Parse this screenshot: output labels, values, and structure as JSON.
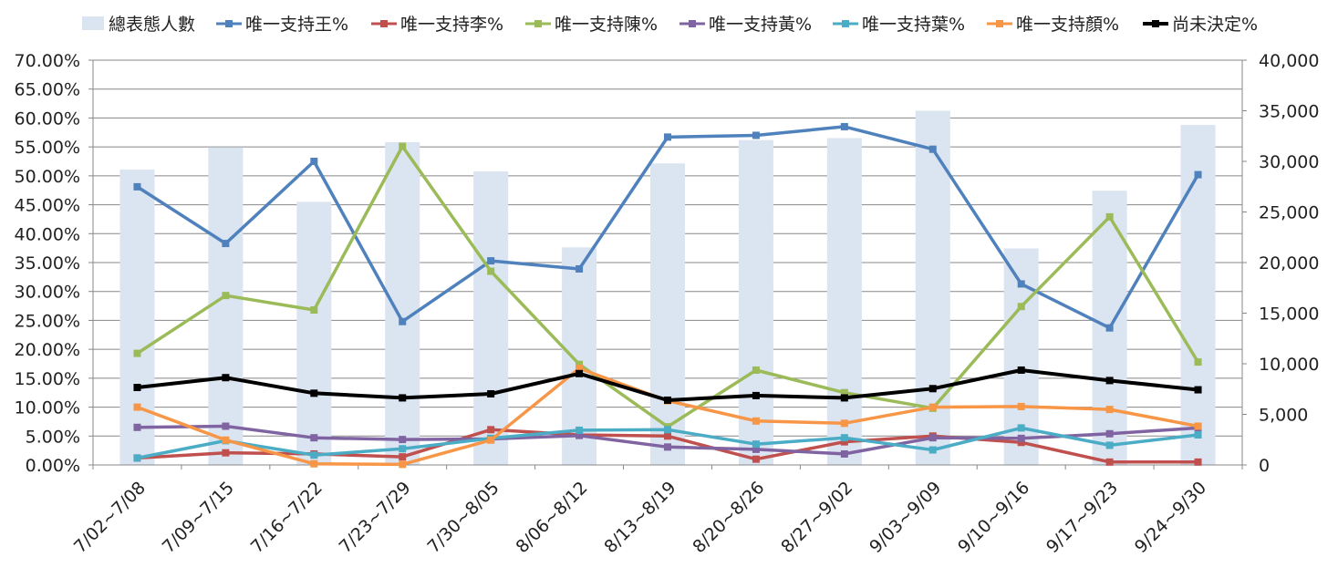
{
  "chart_data": {
    "type": "bar+line",
    "categories": [
      "7/02~7/08",
      "7/09~7/15",
      "7/16~7/22",
      "7/23~7/29",
      "7/30~8/05",
      "8/06~8/12",
      "8/13~8/19",
      "8/20~8/26",
      "8/27~9/02",
      "9/03~9/09",
      "9/10~9/16",
      "9/17~9/23",
      "9/24~9/30"
    ],
    "y_left": {
      "min": 0,
      "max": 0.7,
      "step": 0.05,
      "ticks": [
        "0.00%",
        "5.00%",
        "10.00%",
        "15.00%",
        "20.00%",
        "25.00%",
        "30.00%",
        "35.00%",
        "40.00%",
        "45.00%",
        "50.00%",
        "55.00%",
        "60.00%",
        "65.00%",
        "70.00%"
      ]
    },
    "y_right": {
      "min": 0,
      "max": 40000,
      "step": 5000,
      "ticks": [
        "0",
        "5,000",
        "10,000",
        "15,000",
        "20,000",
        "25,000",
        "30,000",
        "35,000",
        "40,000"
      ]
    },
    "bars": {
      "name": "總表態人數",
      "color": "#dbe4f1",
      "axis": "right",
      "values": [
        29200,
        31400,
        26000,
        31900,
        29000,
        21500,
        29800,
        32100,
        32300,
        35000,
        21400,
        27100,
        33600
      ]
    },
    "series": [
      {
        "name": "唯一支持王%",
        "color": "#4f81bd",
        "values": [
          0.481,
          0.383,
          0.525,
          0.248,
          0.353,
          0.339,
          0.567,
          0.57,
          0.585,
          0.546,
          0.313,
          0.237,
          0.502
        ]
      },
      {
        "name": "唯一支持李%",
        "color": "#c0504d",
        "values": [
          0.012,
          0.021,
          0.019,
          0.014,
          0.061,
          0.052,
          0.05,
          0.01,
          0.04,
          0.05,
          0.039,
          0.005,
          0.005
        ]
      },
      {
        "name": "唯一支持陳%",
        "color": "#9bbb59",
        "values": [
          0.193,
          0.293,
          0.268,
          0.551,
          0.335,
          0.174,
          0.066,
          0.164,
          0.125,
          0.098,
          0.274,
          0.429,
          0.178
        ]
      },
      {
        "name": "唯一支持黃%",
        "color": "#8064a2",
        "values": [
          0.065,
          0.067,
          0.047,
          0.044,
          0.045,
          0.051,
          0.031,
          0.027,
          0.019,
          0.047,
          0.046,
          0.054,
          0.064
        ]
      },
      {
        "name": "唯一支持葉%",
        "color": "#4bacc6",
        "values": [
          0.012,
          0.042,
          0.017,
          0.028,
          0.046,
          0.06,
          0.061,
          0.036,
          0.047,
          0.026,
          0.064,
          0.034,
          0.052
        ]
      },
      {
        "name": "唯一支持顏%",
        "color": "#f79646",
        "values": [
          0.1,
          0.043,
          0.002,
          0.001,
          0.043,
          0.167,
          0.111,
          0.076,
          0.072,
          0.1,
          0.101,
          0.096,
          0.067
        ]
      },
      {
        "name": "尚未決定%",
        "color": "#000000",
        "values": [
          0.134,
          0.151,
          0.124,
          0.116,
          0.123,
          0.158,
          0.112,
          0.12,
          0.116,
          0.132,
          0.164,
          0.146,
          0.13
        ]
      }
    ],
    "legend": "top",
    "grid": true
  }
}
